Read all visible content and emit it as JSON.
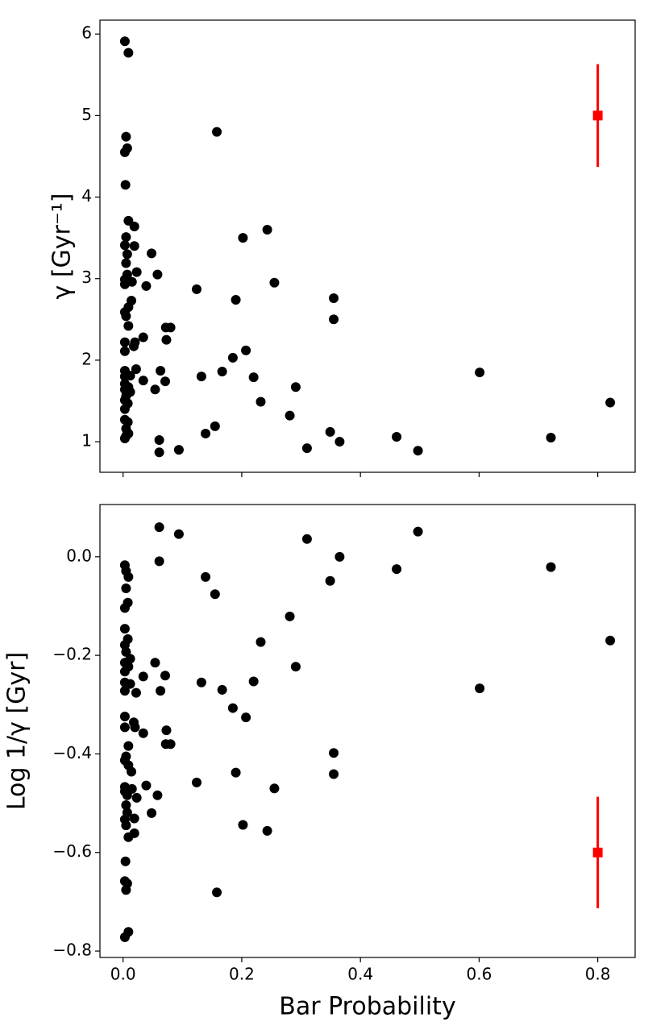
{
  "chart_data": [
    {
      "type": "scatter",
      "ylabel": "γ [Gyr⁻¹]",
      "color": "#000000",
      "xlim": [
        -0.039,
        0.863
      ],
      "ylim": [
        0.625,
        6.17
      ],
      "xticks": [
        {
          "value": 0,
          "label": "0.0"
        },
        {
          "value": 0.2,
          "label": "0.2"
        },
        {
          "value": 0.4,
          "label": "0.4"
        },
        {
          "value": 0.6,
          "label": "0.6"
        },
        {
          "value": 0.8,
          "label": "0.8"
        }
      ],
      "xtick_labels": false,
      "yticks": [
        1,
        2,
        3,
        4,
        5,
        6
      ],
      "x": [
        0.003,
        0.009,
        0.005,
        0.007,
        0.003,
        0.004,
        0.158,
        0.009,
        0.019,
        0.005,
        0.003,
        0.019,
        0.007,
        0.048,
        0.202,
        0.243,
        0.005,
        0.023,
        0.058,
        0.007,
        0.003,
        0.015,
        0.003,
        0.255,
        0.039,
        0.124,
        0.014,
        0.19,
        0.355,
        0.009,
        0.003,
        0.005,
        0.355,
        0.009,
        0.072,
        0.08,
        0.034,
        0.073,
        0.003,
        0.02,
        0.018,
        0.003,
        0.207,
        0.185,
        0.003,
        0.022,
        0.063,
        0.167,
        0.601,
        0.003,
        0.012,
        0.132,
        0.22,
        0.034,
        0.071,
        0.003,
        0.009,
        0.291,
        0.003,
        0.012,
        0.054,
        0.005,
        0.003,
        0.232,
        0.821,
        0.008,
        0.003,
        0.281,
        0.003,
        0.008,
        0.155,
        0.005,
        0.349,
        0.005,
        0.009,
        0.139,
        0.461,
        0.721,
        0.003,
        0.061,
        0.365,
        0.31,
        0.094,
        0.497,
        0.061
      ],
      "y": [
        5.91,
        5.77,
        4.74,
        4.6,
        4.55,
        4.15,
        4.8,
        3.71,
        3.64,
        3.51,
        3.41,
        3.4,
        3.3,
        3.31,
        3.5,
        3.6,
        3.19,
        3.08,
        3.05,
        3.05,
        2.99,
        2.96,
        2.93,
        2.95,
        2.91,
        2.87,
        2.73,
        2.74,
        2.76,
        2.65,
        2.59,
        2.54,
        2.5,
        2.42,
        2.4,
        2.4,
        2.28,
        2.25,
        2.22,
        2.22,
        2.17,
        2.11,
        2.12,
        2.03,
        1.87,
        1.89,
        1.87,
        1.86,
        1.85,
        1.8,
        1.81,
        1.8,
        1.79,
        1.75,
        1.74,
        1.71,
        1.67,
        1.67,
        1.64,
        1.61,
        1.64,
        1.56,
        1.51,
        1.49,
        1.48,
        1.47,
        1.4,
        1.32,
        1.27,
        1.24,
        1.19,
        1.16,
        1.12,
        1.07,
        1.1,
        1.1,
        1.06,
        1.05,
        1.04,
        1.02,
        1.0,
        0.92,
        0.9,
        0.89,
        0.87
      ],
      "errorbar": {
        "color": "#ff0000",
        "x": [
          0.8
        ],
        "y": [
          5
        ],
        "yerr": [
          0.63
        ]
      }
    },
    {
      "type": "scatter",
      "ylabel": "Log 1/γ [Gyr]",
      "xlabel": "Bar Probability",
      "color": "#000000",
      "xlim": [
        -0.039,
        0.863
      ],
      "ylim": [
        -0.813,
        0.106
      ],
      "xticks": [
        {
          "value": 0,
          "label": "0.0"
        },
        {
          "value": 0.2,
          "label": "0.2"
        },
        {
          "value": 0.4,
          "label": "0.4"
        },
        {
          "value": 0.6,
          "label": "0.6"
        },
        {
          "value": 0.8,
          "label": "0.8"
        }
      ],
      "xtick_labels": true,
      "yticks": [
        {
          "value": -0.8,
          "label": "−0.8"
        },
        {
          "value": -0.6,
          "label": "−0.6"
        },
        {
          "value": -0.4,
          "label": "−0.4"
        },
        {
          "value": -0.2,
          "label": "−0.2"
        },
        {
          "value": 0,
          "label": "0.0"
        }
      ],
      "x": [
        0.003,
        0.009,
        0.005,
        0.007,
        0.003,
        0.004,
        0.158,
        0.009,
        0.019,
        0.005,
        0.003,
        0.019,
        0.007,
        0.048,
        0.202,
        0.243,
        0.005,
        0.023,
        0.058,
        0.007,
        0.003,
        0.015,
        0.003,
        0.255,
        0.039,
        0.124,
        0.014,
        0.19,
        0.355,
        0.009,
        0.003,
        0.005,
        0.355,
        0.009,
        0.072,
        0.08,
        0.034,
        0.073,
        0.003,
        0.02,
        0.018,
        0.003,
        0.207,
        0.185,
        0.003,
        0.022,
        0.063,
        0.167,
        0.601,
        0.003,
        0.012,
        0.132,
        0.22,
        0.034,
        0.071,
        0.003,
        0.009,
        0.291,
        0.003,
        0.012,
        0.054,
        0.005,
        0.003,
        0.232,
        0.821,
        0.008,
        0.003,
        0.281,
        0.003,
        0.008,
        0.155,
        0.005,
        0.349,
        0.005,
        0.009,
        0.139,
        0.461,
        0.721,
        0.003,
        0.061,
        0.365,
        0.31,
        0.094,
        0.497,
        0.061
      ],
      "y": [
        -0.772,
        -0.761,
        -0.676,
        -0.663,
        -0.658,
        -0.618,
        -0.681,
        -0.569,
        -0.561,
        -0.545,
        -0.533,
        -0.531,
        -0.519,
        -0.52,
        -0.544,
        -0.556,
        -0.504,
        -0.489,
        -0.484,
        -0.484,
        -0.476,
        -0.471,
        -0.467,
        -0.47,
        -0.464,
        -0.458,
        -0.436,
        -0.438,
        -0.441,
        -0.423,
        -0.413,
        -0.405,
        -0.398,
        -0.384,
        -0.38,
        -0.38,
        -0.358,
        -0.352,
        -0.346,
        -0.346,
        -0.336,
        -0.324,
        -0.326,
        -0.307,
        -0.272,
        -0.276,
        -0.272,
        -0.27,
        -0.267,
        -0.255,
        -0.258,
        -0.255,
        -0.253,
        -0.243,
        -0.241,
        -0.233,
        -0.223,
        -0.223,
        -0.215,
        -0.207,
        -0.215,
        -0.193,
        -0.179,
        -0.173,
        -0.17,
        -0.167,
        -0.146,
        -0.121,
        -0.104,
        -0.093,
        -0.076,
        -0.064,
        -0.049,
        -0.029,
        -0.041,
        -0.041,
        -0.025,
        -0.021,
        -0.017,
        -0.009,
        0,
        0.036,
        0.046,
        0.051,
        0.06
      ],
      "errorbar": {
        "color": "#ff0000",
        "x": [
          0.8
        ],
        "y": [
          -0.6
        ],
        "yerr": [
          0.113
        ]
      }
    }
  ]
}
